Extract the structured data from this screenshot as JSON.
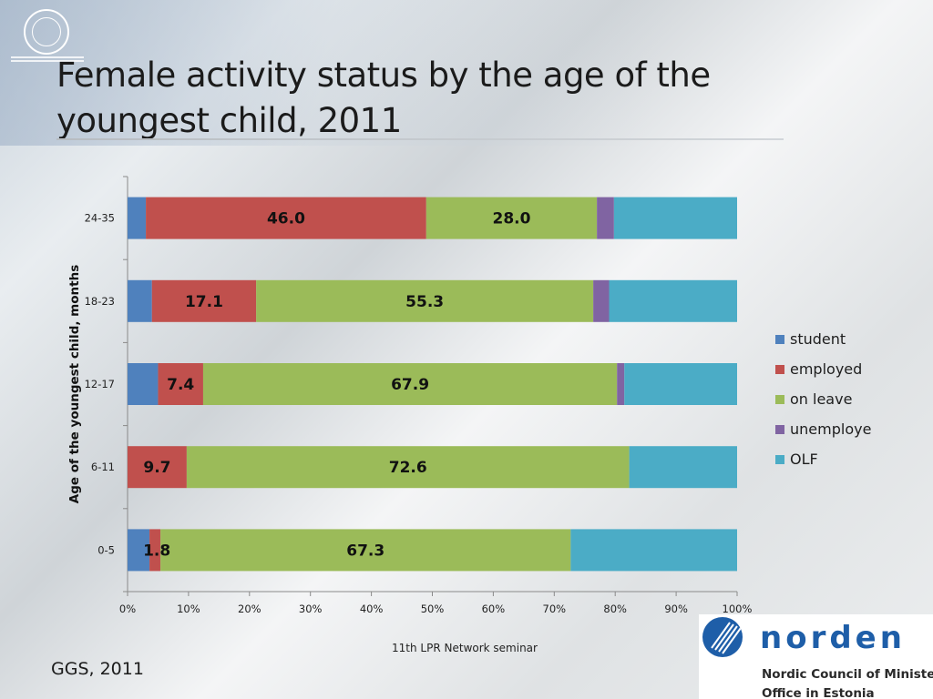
{
  "slide": {
    "title": "Female activity status by the age of the youngest child, 2011",
    "footer": "11th LPR Network seminar",
    "source": "GGS, 2011"
  },
  "norden_logo": {
    "name": "norden",
    "line1": "Nordic Council of Ministers´",
    "line2": "Office in Estonia"
  },
  "chart_data": {
    "type": "bar",
    "orientation": "horizontal",
    "stacked": "percent",
    "ylabel": "Age of the youngest child, months",
    "xlabel": "",
    "categories": [
      "0-5",
      "6-11",
      "12-17",
      "18-23",
      "24-35"
    ],
    "xlim": [
      0,
      100
    ],
    "xticks": [
      "0%",
      "10%",
      "20%",
      "30%",
      "40%",
      "50%",
      "60%",
      "70%",
      "80%",
      "90%",
      "100%"
    ],
    "legend_position": "right",
    "series": [
      {
        "name": "student",
        "color": "#4f81bd",
        "values": [
          3.6,
          0.0,
          5.0,
          4.0,
          3.0
        ]
      },
      {
        "name": "employed",
        "color": "#c0504d",
        "values": [
          1.8,
          9.7,
          7.4,
          17.1,
          46.0
        ]
      },
      {
        "name": "on leave",
        "color": "#9bbb59",
        "values": [
          67.3,
          72.6,
          67.9,
          55.3,
          28.0
        ]
      },
      {
        "name": "unemploye",
        "color": "#8064a2",
        "values": [
          0.0,
          0.0,
          1.2,
          2.6,
          2.8
        ]
      },
      {
        "name": "OLF",
        "color": "#4bacc6",
        "values": [
          27.3,
          17.7,
          18.5,
          21.0,
          20.2
        ]
      }
    ],
    "data_labels": [
      {
        "category": "0-5",
        "series": "employed",
        "text": "1.8"
      },
      {
        "category": "0-5",
        "series": "on leave",
        "text": "67.3"
      },
      {
        "category": "6-11",
        "series": "employed",
        "text": "9.7"
      },
      {
        "category": "6-11",
        "series": "on leave",
        "text": "72.6"
      },
      {
        "category": "12-17",
        "series": "employed",
        "text": "7.4"
      },
      {
        "category": "12-17",
        "series": "on leave",
        "text": "67.9"
      },
      {
        "category": "18-23",
        "series": "employed",
        "text": "17.1"
      },
      {
        "category": "18-23",
        "series": "on leave",
        "text": "55.3"
      },
      {
        "category": "24-35",
        "series": "employed",
        "text": "46.0"
      },
      {
        "category": "24-35",
        "series": "on leave",
        "text": "28.0"
      }
    ]
  }
}
